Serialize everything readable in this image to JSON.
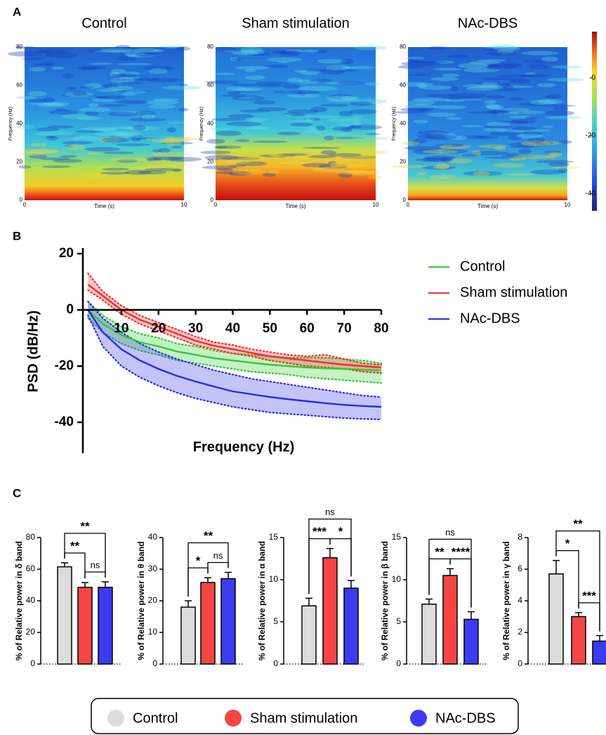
{
  "chart_data": [
    {
      "type": "heatmap",
      "panel": "A",
      "title": "Control",
      "xlabel": "Time (s)",
      "ylabel": "Frequency (Hz)",
      "xlim": [
        0,
        10
      ],
      "xticks": [
        0,
        10
      ],
      "ylim": [
        0,
        80
      ],
      "yticks": [
        0,
        20,
        40,
        60,
        80
      ]
    },
    {
      "type": "heatmap",
      "title": "Sham stimulation",
      "xlabel": "Time (s)",
      "ylabel": "Frequency (Hz)",
      "xlim": [
        0,
        10
      ],
      "xticks": [
        0,
        10
      ],
      "ylim": [
        0,
        80
      ],
      "yticks": [
        0,
        20,
        40,
        60,
        80
      ]
    },
    {
      "type": "heatmap",
      "title": "NAc-DBS",
      "xlabel": "Time (s)",
      "ylabel": "Frequency (Hz)",
      "xlim": [
        0,
        10
      ],
      "xticks": [
        0,
        10
      ],
      "ylim": [
        0,
        80
      ],
      "yticks": [
        0,
        20,
        40,
        60,
        80
      ],
      "clim": [
        -46,
        16
      ],
      "cticks": [
        0,
        -20,
        -40
      ]
    },
    {
      "type": "line",
      "panel": "B",
      "xlabel": "Frequency (Hz)",
      "ylabel": "PSD (dB/Hz)",
      "xlim": [
        0,
        80
      ],
      "xticks": [
        10,
        20,
        30,
        40,
        50,
        60,
        70,
        80
      ],
      "ylim": [
        -51,
        22
      ],
      "yticks": [
        20,
        0,
        -20,
        -40
      ],
      "x": [
        1,
        5,
        10,
        15,
        20,
        25,
        30,
        35,
        40,
        45,
        50,
        55,
        60,
        65,
        70,
        75,
        80
      ],
      "series": [
        {
          "name": "Control",
          "color": "#2ecc2e",
          "values": [
            0,
            -5,
            -9,
            -11.5,
            -13,
            -14.8,
            -16,
            -17.2,
            -18,
            -18.8,
            -19.5,
            -20,
            -20.5,
            -20.8,
            -21,
            -21.3,
            -21.5
          ],
          "lower": [
            -3,
            -8,
            -12,
            -14.5,
            -16,
            -18,
            -19,
            -20,
            -21,
            -22,
            -22.5,
            -23,
            -24,
            -24.5,
            -25,
            -25.5,
            -26
          ],
          "upper": [
            3,
            -2,
            -6,
            -8.5,
            -10,
            -12,
            -13,
            -14.5,
            -15.5,
            -16,
            -16.5,
            -17,
            -17,
            -17,
            -17.5,
            -18,
            -19
          ]
        },
        {
          "name": "Sham stimulation",
          "color": "#f03030",
          "values": [
            9,
            5,
            0,
            -3.5,
            -6,
            -8.5,
            -11,
            -12.8,
            -14,
            -15.3,
            -16.5,
            -17.3,
            -18,
            -18.8,
            -19.5,
            -20,
            -20.5
          ],
          "lower": [
            7,
            3.5,
            -1.5,
            -5,
            -7.5,
            -10,
            -12.5,
            -14,
            -15.5,
            -16.5,
            -18,
            -19,
            -20,
            -20.5,
            -21,
            -22,
            -22.5
          ],
          "upper": [
            13,
            6.5,
            1.5,
            -2,
            -4.5,
            -7,
            -9.5,
            -11.5,
            -12.5,
            -14,
            -15,
            -16,
            -16.5,
            -16,
            -17.5,
            -19,
            -19.5
          ]
        },
        {
          "name": "NAc-DBS",
          "color": "#2a2ae8",
          "values": [
            0,
            -8,
            -14,
            -18,
            -21,
            -23.5,
            -25.5,
            -27.3,
            -29,
            -30,
            -31,
            -31.8,
            -32.5,
            -33.2,
            -33.8,
            -34.2,
            -34.5
          ],
          "lower": [
            -2,
            -13,
            -20,
            -24,
            -27,
            -29.5,
            -31.5,
            -33,
            -34.5,
            -35.5,
            -36.5,
            -37,
            -37.5,
            -38,
            -38.5,
            -38.8,
            -39
          ],
          "upper": [
            3,
            -3,
            -8,
            -12,
            -15,
            -17.5,
            -19.5,
            -21.5,
            -23,
            -24.5,
            -25.5,
            -26.5,
            -27.5,
            -28.5,
            -29.5,
            -30.5,
            -31
          ]
        }
      ]
    },
    {
      "type": "bar",
      "panel": "C",
      "ylabel": "% of Relative power in δ band",
      "ylim": [
        0,
        80
      ],
      "yticks": [
        0,
        20,
        40,
        60,
        80
      ],
      "series": [
        {
          "name": "Control",
          "color": "#dcdcdc",
          "values": [
            61.5
          ],
          "errors": [
            2.5
          ]
        },
        {
          "name": "Sham stimulation",
          "color": "#f54545",
          "values": [
            48.5
          ],
          "errors": [
            3
          ]
        },
        {
          "name": "NAc-DBS",
          "color": "#3b3bf0",
          "values": [
            48.5
          ],
          "errors": [
            3.5
          ]
        }
      ],
      "comparisons": [
        {
          "between": [
            "Control",
            "Sham stimulation"
          ],
          "label": "**"
        },
        {
          "between": [
            "Sham stimulation",
            "NAc-DBS"
          ],
          "label": "ns"
        },
        {
          "between": [
            "Control",
            "NAc-DBS"
          ],
          "label": "**"
        }
      ]
    },
    {
      "type": "bar",
      "ylabel": "% of Relative power in θ band",
      "ylim": [
        0,
        40
      ],
      "yticks": [
        0,
        10,
        20,
        30,
        40
      ],
      "series": [
        {
          "name": "Control",
          "color": "#dcdcdc",
          "values": [
            18
          ],
          "errors": [
            2
          ]
        },
        {
          "name": "Sham stimulation",
          "color": "#f54545",
          "values": [
            25.8
          ],
          "errors": [
            1.5
          ]
        },
        {
          "name": "NAc-DBS",
          "color": "#3b3bf0",
          "values": [
            27
          ],
          "errors": [
            2
          ]
        }
      ],
      "comparisons": [
        {
          "between": [
            "Control",
            "Sham stimulation"
          ],
          "label": "*"
        },
        {
          "between": [
            "Sham stimulation",
            "NAc-DBS"
          ],
          "label": "ns"
        },
        {
          "between": [
            "Control",
            "NAc-DBS"
          ],
          "label": "**"
        }
      ]
    },
    {
      "type": "bar",
      "ylabel": "% of Relative power in α band",
      "ylim": [
        0,
        15
      ],
      "yticks": [
        0,
        5,
        10,
        15
      ],
      "series": [
        {
          "name": "Control",
          "color": "#dcdcdc",
          "values": [
            6.9
          ],
          "errors": [
            0.9
          ]
        },
        {
          "name": "Sham stimulation",
          "color": "#f54545",
          "values": [
            12.6
          ],
          "errors": [
            1.1
          ]
        },
        {
          "name": "NAc-DBS",
          "color": "#3b3bf0",
          "values": [
            9
          ],
          "errors": [
            0.9
          ]
        }
      ],
      "comparisons": [
        {
          "between": [
            "Control",
            "Sham stimulation"
          ],
          "label": "***"
        },
        {
          "between": [
            "Sham stimulation",
            "NAc-DBS"
          ],
          "label": "*"
        },
        {
          "between": [
            "Control",
            "NAc-DBS"
          ],
          "label": "ns"
        }
      ]
    },
    {
      "type": "bar",
      "ylabel": "% of Relative power in β band",
      "ylim": [
        0,
        15
      ],
      "yticks": [
        0,
        5,
        10,
        15
      ],
      "series": [
        {
          "name": "Control",
          "color": "#dcdcdc",
          "values": [
            7.1
          ],
          "errors": [
            0.6
          ]
        },
        {
          "name": "Sham stimulation",
          "color": "#f54545",
          "values": [
            10.5
          ],
          "errors": [
            0.8
          ]
        },
        {
          "name": "NAc-DBS",
          "color": "#3b3bf0",
          "values": [
            5.3
          ],
          "errors": [
            0.9
          ]
        }
      ],
      "comparisons": [
        {
          "between": [
            "Control",
            "Sham stimulation"
          ],
          "label": "**"
        },
        {
          "between": [
            "Sham stimulation",
            "NAc-DBS"
          ],
          "label": "****"
        },
        {
          "between": [
            "Control",
            "NAc-DBS"
          ],
          "label": "ns"
        }
      ]
    },
    {
      "type": "bar",
      "ylabel": "% of Relative power in γ band",
      "ylim": [
        0,
        8
      ],
      "yticks": [
        0,
        2,
        4,
        6,
        8
      ],
      "series": [
        {
          "name": "Control",
          "color": "#dcdcdc",
          "values": [
            5.7
          ],
          "errors": [
            0.85
          ]
        },
        {
          "name": "Sham stimulation",
          "color": "#f54545",
          "values": [
            3
          ],
          "errors": [
            0.25
          ]
        },
        {
          "name": "NAc-DBS",
          "color": "#3b3bf0",
          "values": [
            1.45
          ],
          "errors": [
            0.35
          ]
        }
      ],
      "comparisons": [
        {
          "between": [
            "Control",
            "Sham stimulation"
          ],
          "label": "*"
        },
        {
          "between": [
            "Sham stimulation",
            "NAc-DBS"
          ],
          "label": "***"
        },
        {
          "between": [
            "Control",
            "NAc-DBS"
          ],
          "label": "**"
        }
      ]
    }
  ]
}
